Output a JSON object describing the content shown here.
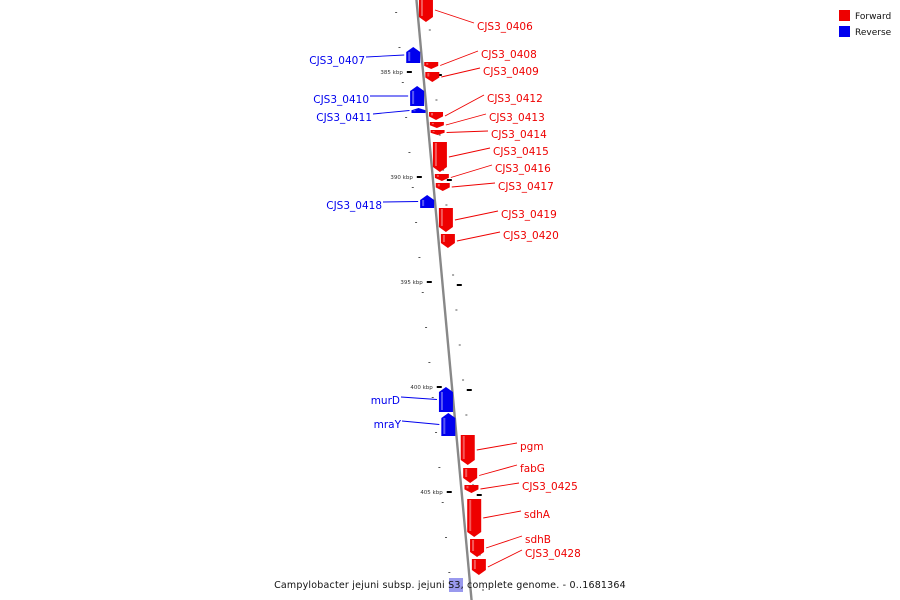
{
  "colors": {
    "forward": "#ee0000",
    "reverse": "#0000ee",
    "backbone": "#888888",
    "marker": "#000000"
  },
  "legend": [
    {
      "label": "Forward",
      "strand": "forward"
    },
    {
      "label": "Reverse",
      "strand": "reverse"
    }
  ],
  "caption": "Campylobacter jejuni subsp. jejuni S3, complete genome. - 0..1681364",
  "scale_labels": [
    "385 kbp",
    "390 kbp",
    "395 kbp",
    "400 kbp",
    "405 kbp"
  ],
  "genes": [
    {
      "label": "CJS3_0406",
      "strand": "forward"
    },
    {
      "label": "CJS3_0408",
      "strand": "forward"
    },
    {
      "label": "CJS3_0409",
      "strand": "forward"
    },
    {
      "label": "CJS3_0412",
      "strand": "forward"
    },
    {
      "label": "CJS3_0413",
      "strand": "forward"
    },
    {
      "label": "CJS3_0414",
      "strand": "forward"
    },
    {
      "label": "CJS3_0415",
      "strand": "forward"
    },
    {
      "label": "CJS3_0416",
      "strand": "forward"
    },
    {
      "label": "CJS3_0417",
      "strand": "forward"
    },
    {
      "label": "CJS3_0419",
      "strand": "forward"
    },
    {
      "label": "CJS3_0420",
      "strand": "forward"
    },
    {
      "label": "pgm",
      "strand": "forward"
    },
    {
      "label": "fabG",
      "strand": "forward"
    },
    {
      "label": "CJS3_0425",
      "strand": "forward"
    },
    {
      "label": "sdhA",
      "strand": "forward"
    },
    {
      "label": "sdhB",
      "strand": "forward"
    },
    {
      "label": "CJS3_0428",
      "strand": "forward"
    },
    {
      "label": "CJS3_0407",
      "strand": "reverse"
    },
    {
      "label": "CJS3_0410",
      "strand": "reverse"
    },
    {
      "label": "CJS3_0411",
      "strand": "reverse"
    },
    {
      "label": "CJS3_0418",
      "strand": "reverse"
    },
    {
      "label": "murD",
      "strand": "reverse"
    },
    {
      "label": "mraY",
      "strand": "reverse"
    }
  ]
}
